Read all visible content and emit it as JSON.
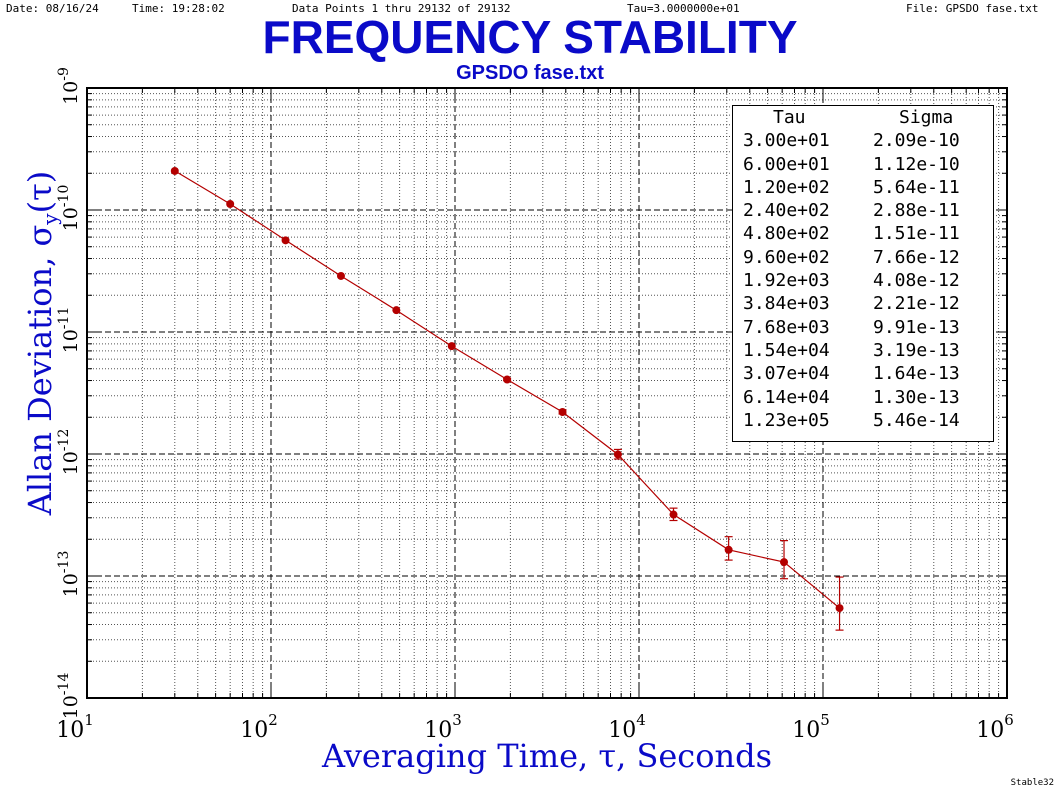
{
  "header": {
    "date": "Date: 08/16/24",
    "time": "Time: 19:28:02",
    "data_points": "Data Points 1 thru 29132 of 29132",
    "tau": "Tau=3.0000000e+01",
    "file": "File: GPSDO fase.txt"
  },
  "footer": "Stable32",
  "colors": {
    "title": "#0a0ac8",
    "series": "#b40000",
    "axis_text": "#000000"
  },
  "table": {
    "headers": [
      "Tau",
      "Sigma"
    ],
    "rows": [
      [
        "3.00e+01",
        "2.09e-10"
      ],
      [
        "6.00e+01",
        "1.12e-10"
      ],
      [
        "1.20e+02",
        "5.64e-11"
      ],
      [
        "2.40e+02",
        "2.88e-11"
      ],
      [
        "4.80e+02",
        "1.51e-11"
      ],
      [
        "9.60e+02",
        "7.66e-12"
      ],
      [
        "1.92e+03",
        "4.08e-12"
      ],
      [
        "3.84e+03",
        "2.21e-12"
      ],
      [
        "7.68e+03",
        "9.91e-13"
      ],
      [
        "1.54e+04",
        "3.19e-13"
      ],
      [
        "3.07e+04",
        "1.64e-13"
      ],
      [
        "6.14e+04",
        "1.30e-13"
      ],
      [
        "1.23e+05",
        "5.46e-14"
      ]
    ]
  },
  "chart_data": {
    "type": "line",
    "title": "FREQUENCY STABILITY",
    "subtitle": "GPSDO fase.txt",
    "xlabel": "Averaging Time, τ, Seconds",
    "ylabel_main": "Allan Deviation, σ",
    "ylabel_sub": "y",
    "ylabel_end": "(τ)",
    "xscale": "log",
    "yscale": "log",
    "xlim": [
      10,
      1000000
    ],
    "ylim": [
      1e-14,
      1e-09
    ],
    "grid": true,
    "xtick_exponents": [
      "1",
      "2",
      "3",
      "4",
      "5",
      "6"
    ],
    "ytick_exponents": [
      "-9",
      "-10",
      "-11",
      "-12",
      "-13",
      "-14"
    ],
    "series": [
      {
        "x": [
          30,
          60,
          120,
          240,
          480,
          960,
          1920,
          3840,
          7680,
          15400,
          30700,
          61400,
          123000
        ],
        "y": [
          2.09e-10,
          1.12e-10,
          5.64e-11,
          2.88e-11,
          1.51e-11,
          7.66e-12,
          4.08e-12,
          2.21e-12,
          9.91e-13,
          3.19e-13,
          1.64e-13,
          1.3e-13,
          5.46e-14
        ],
        "err_low": [
          2.09e-10,
          1.12e-10,
          5.64e-11,
          2.88e-11,
          1.51e-11,
          7.6e-12,
          4e-12,
          2.13e-12,
          9.1e-13,
          2.85e-13,
          1.35e-13,
          9.5e-14,
          3.6e-14
        ],
        "err_high": [
          2.09e-10,
          1.12e-10,
          5.64e-11,
          2.88e-11,
          1.51e-11,
          7.72e-12,
          4.16e-12,
          2.3e-12,
          1.09e-12,
          3.6e-13,
          2.1e-13,
          1.95e-13,
          9.8e-14
        ]
      }
    ]
  }
}
